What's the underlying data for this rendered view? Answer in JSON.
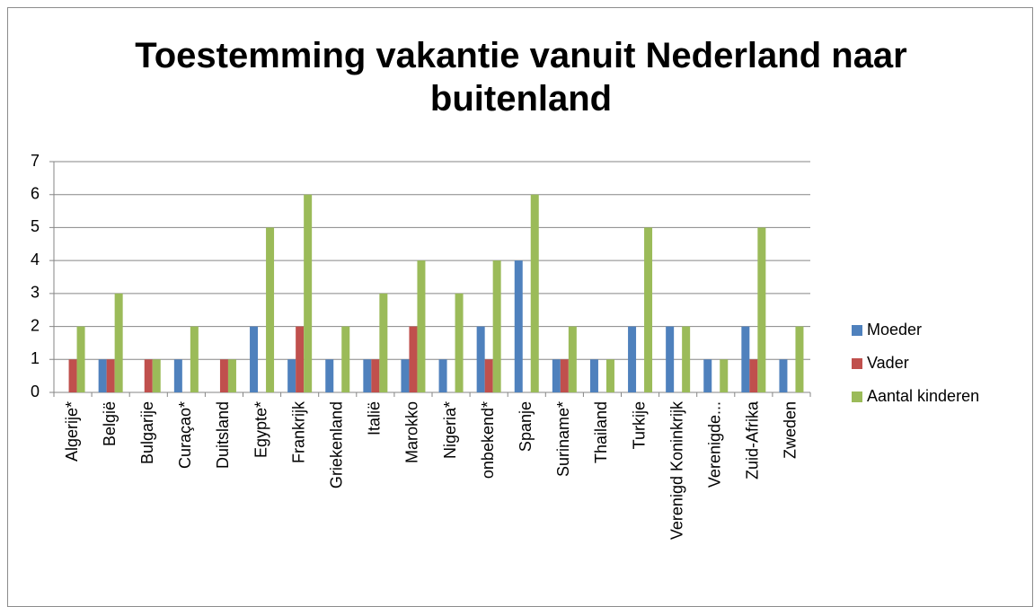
{
  "chart_data": {
    "type": "bar",
    "title": "Toestemming vakantie vanuit Nederland naar buitenland",
    "categories": [
      "Algerije*",
      "België",
      "Bulgarije",
      "Curaçao*",
      "Duitsland",
      "Egypte*",
      "Frankrijk",
      "Griekenland",
      "Italië",
      "Marokko",
      "Nigeria*",
      "onbekend*",
      "Spanje",
      "Suriname*",
      "Thailand",
      "Turkije",
      "Verenigd Koninkrijk",
      "Verenigde...",
      "Zuid-Afrika",
      "Zweden"
    ],
    "series": [
      {
        "name": "Moeder",
        "color": "#4f81bd",
        "values": [
          0,
          1,
          0,
          1,
          0,
          2,
          1,
          1,
          1,
          1,
          1,
          2,
          4,
          1,
          1,
          2,
          2,
          1,
          2,
          1
        ]
      },
      {
        "name": "Vader",
        "color": "#c0504d",
        "values": [
          1,
          1,
          1,
          0,
          1,
          0,
          2,
          0,
          1,
          2,
          0,
          1,
          0,
          1,
          0,
          0,
          0,
          0,
          1,
          0
        ]
      },
      {
        "name": "Aantal kinderen",
        "color": "#9bbb59",
        "values": [
          2,
          3,
          1,
          2,
          1,
          5,
          6,
          2,
          3,
          4,
          3,
          4,
          6,
          2,
          1,
          5,
          2,
          1,
          5,
          2
        ]
      }
    ],
    "ylim": [
      0,
      7
    ],
    "yticks": [
      0,
      1,
      2,
      3,
      4,
      5,
      6,
      7
    ],
    "grid": true,
    "legend": "right"
  }
}
